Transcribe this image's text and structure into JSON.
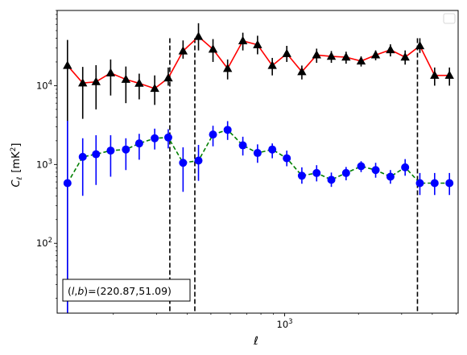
{
  "chart_data": {
    "type": "line",
    "title": "",
    "xlabel": "ℓ",
    "ylabel_main": "C",
    "ylabel_sub": "ℓ",
    "ylabel_unit": "[mK",
    "ylabel_unit_sup": "2",
    "ylabel_unit_close": "]",
    "xscale": "log",
    "yscale": "log",
    "xlim": [
      118,
      5100
    ],
    "ylim": [
      13,
      90000
    ],
    "x_tick_labels": [
      {
        "base": "10",
        "exp": "3",
        "value": 1000
      }
    ],
    "y_tick_labels": [
      {
        "base": "10",
        "exp": "2",
        "value": 100
      },
      {
        "base": "10",
        "exp": "3",
        "value": 1000
      },
      {
        "base": "10",
        "exp": "4",
        "value": 10000
      }
    ],
    "vertical_lines": [
      340,
      430,
      3480
    ],
    "annotation": {
      "prefix": "(",
      "l": "l",
      "comma": ",",
      "b": "b",
      "suffix": ")=(220.87,51.09)"
    },
    "legend": "top-right",
    "series": [
      {
        "line_color": "#ff0000",
        "marker_color": "#000000",
        "marker": "triangle",
        "linestyle": "solid",
        "x": [
          130,
          150,
          170,
          195,
          225,
          255,
          295,
          335,
          385,
          445,
          510,
          585,
          675,
          775,
          890,
          1020,
          1175,
          1350,
          1550,
          1780,
          2050,
          2350,
          2700,
          3100,
          3560,
          4090,
          4700
        ],
        "y": [
          18000,
          10800,
          11200,
          14500,
          12000,
          10700,
          9200,
          12500,
          27500,
          42000,
          29000,
          16500,
          37000,
          33000,
          18000,
          25500,
          15000,
          24500,
          23500,
          23000,
          20500,
          24500,
          28500,
          23000,
          32000,
          13500,
          13500
        ],
        "err_low": [
          18000,
          7000,
          6200,
          7000,
          6000,
          4000,
          3500,
          2500,
          5500,
          14000,
          9000,
          4500,
          9000,
          8000,
          4500,
          5500,
          3000,
          5000,
          4000,
          4000,
          3000,
          3500,
          5000,
          4500,
          6000,
          3500,
          3500
        ],
        "err_high": [
          20000,
          6500,
          7000,
          7000,
          5500,
          3500,
          4300,
          4500,
          10000,
          20000,
          10000,
          5000,
          10000,
          10000,
          4500,
          6500,
          3000,
          5000,
          4000,
          4000,
          3000,
          3500,
          5000,
          5000,
          8000,
          3500,
          3500
        ]
      },
      {
        "line_color": "#008000",
        "marker_color": "#0000ff",
        "marker": "circle",
        "linestyle": "dashed",
        "x": [
          130,
          150,
          170,
          195,
          225,
          255,
          295,
          335,
          385,
          445,
          510,
          585,
          675,
          775,
          890,
          1020,
          1175,
          1350,
          1550,
          1780,
          2050,
          2350,
          2700,
          3100,
          3560,
          4090,
          4700
        ],
        "y": [
          580,
          1250,
          1350,
          1500,
          1550,
          1850,
          2150,
          2200,
          1050,
          1120,
          2400,
          2750,
          1750,
          1400,
          1550,
          1200,
          720,
          780,
          640,
          780,
          950,
          850,
          700,
          920,
          580,
          580,
          580
        ],
        "err_low": [
          570,
          850,
          800,
          800,
          700,
          700,
          600,
          600,
          600,
          500,
          700,
          700,
          450,
          350,
          350,
          250,
          150,
          170,
          120,
          150,
          150,
          170,
          130,
          200,
          170,
          170,
          170
        ],
        "err_high": [
          3000,
          900,
          1000,
          850,
          600,
          600,
          700,
          600,
          600,
          650,
          700,
          800,
          500,
          400,
          300,
          300,
          200,
          200,
          150,
          150,
          150,
          200,
          150,
          250,
          200,
          200,
          200
        ]
      }
    ]
  }
}
